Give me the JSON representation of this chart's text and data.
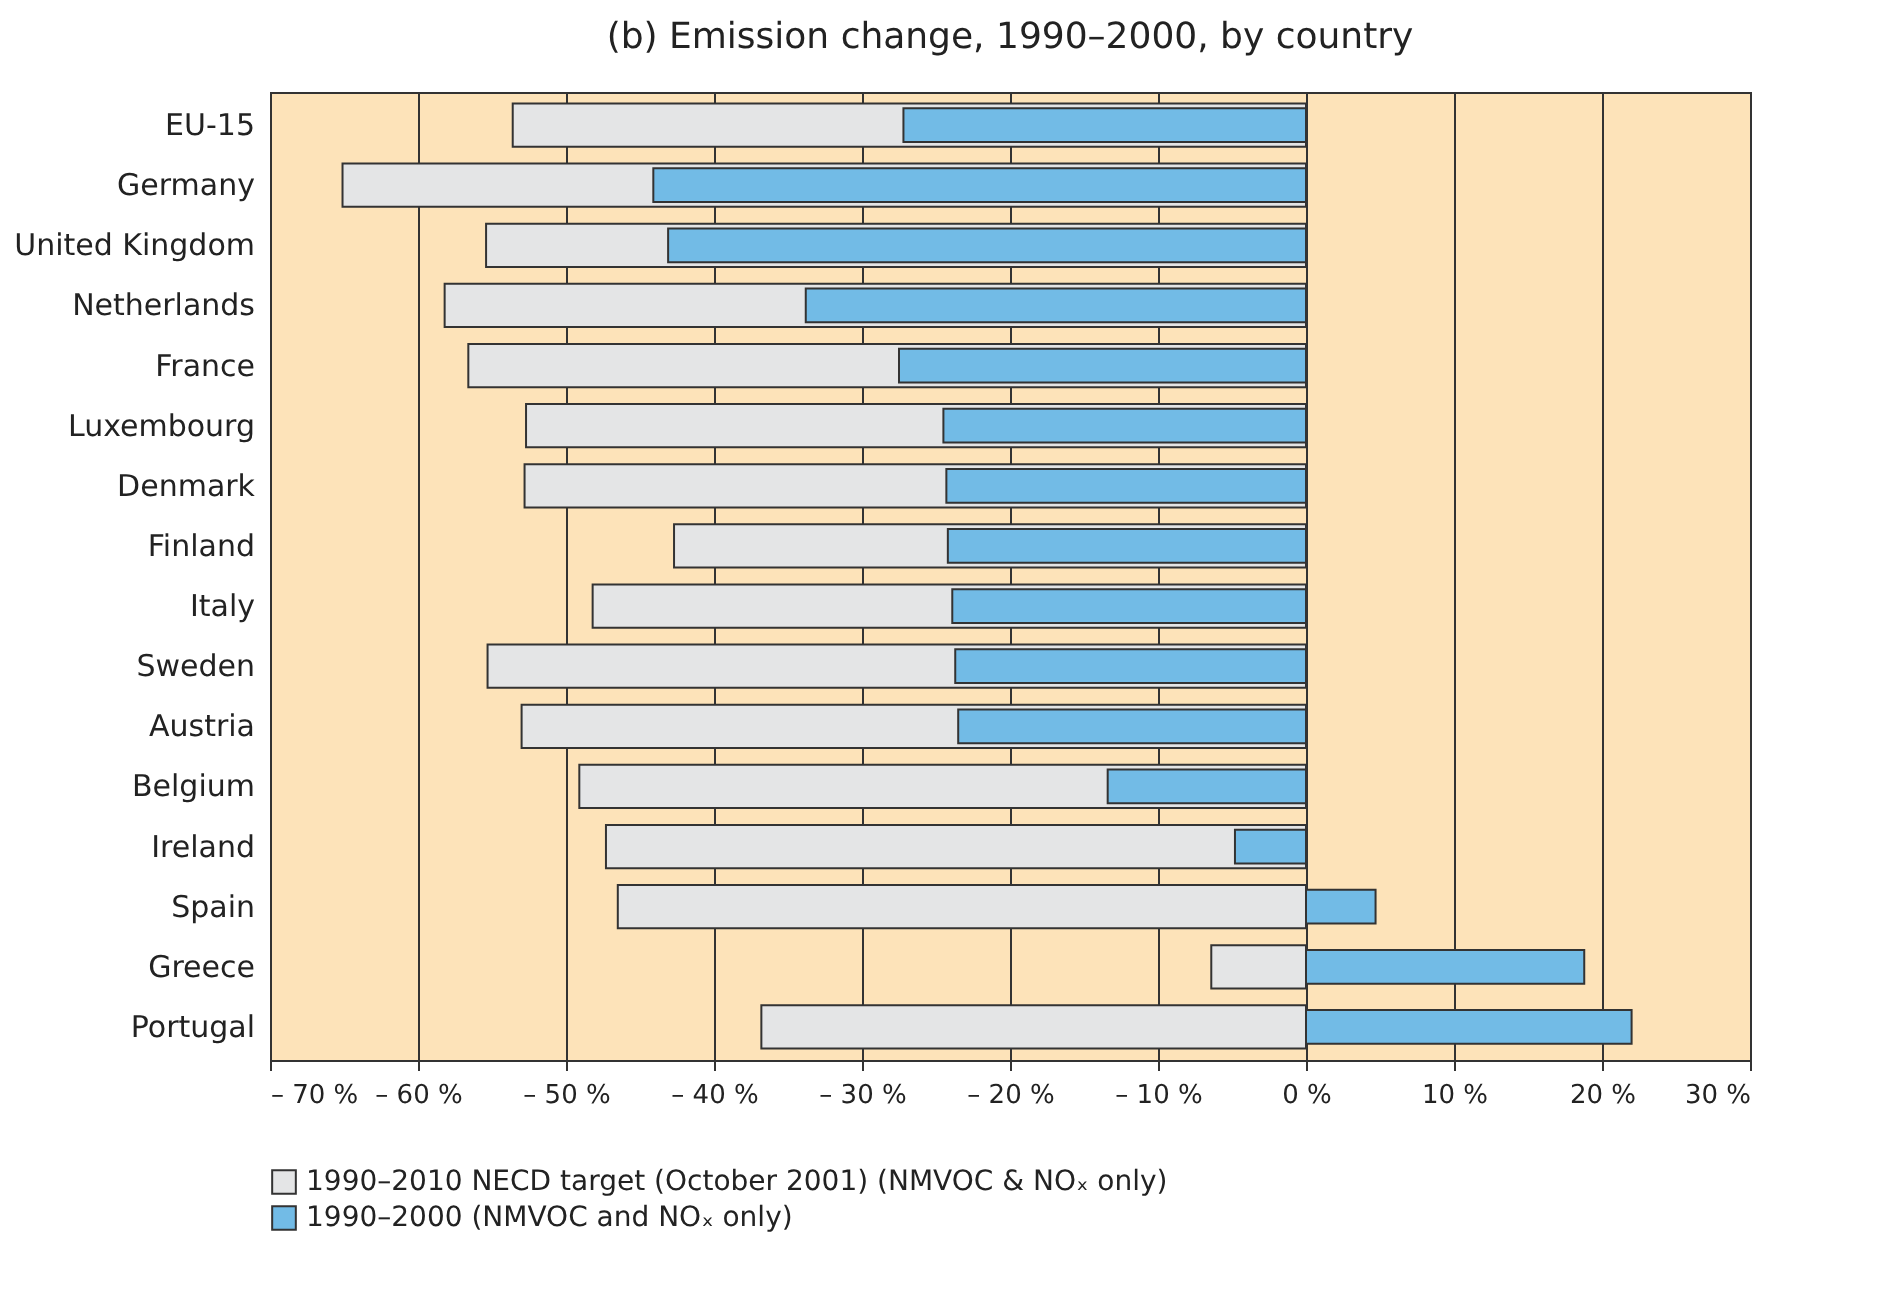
{
  "chart_data": {
    "type": "bar",
    "orientation": "horizontal",
    "title": "(b) Emission change, 1990–2000, by country",
    "categories": [
      "EU-15",
      "Germany",
      "United Kingdom",
      "Netherlands",
      "France",
      "Luxembourg",
      "Denmark",
      "Finland",
      "Italy",
      "Sweden",
      "Austria",
      "Belgium",
      "Ireland",
      "Spain",
      "Greece",
      "Portugal"
    ],
    "series": [
      {
        "name": "1990–2010 NECD target (October 2001) (NMVOC & NOₓ only)",
        "color": "#e4e5e6",
        "values": [
          -53.6,
          -65.1,
          -55.4,
          -58.2,
          -56.6,
          -52.7,
          -52.8,
          -42.7,
          -48.2,
          -55.3,
          -53.0,
          -49.1,
          -47.3,
          -46.5,
          -6.4,
          -36.8
        ]
      },
      {
        "name": "1990–2000 (NMVOC and NOₓ only)",
        "color": "#72bbe6",
        "values": [
          -27.2,
          -44.1,
          -43.1,
          -33.8,
          -27.5,
          -24.5,
          -24.3,
          -24.2,
          -23.9,
          -23.7,
          -23.5,
          -13.4,
          -4.8,
          4.7,
          18.8,
          22.0
        ]
      }
    ],
    "xlim": [
      -70,
      30
    ],
    "xticks": [
      {
        "value": -70,
        "label": "– 70 %"
      },
      {
        "value": -60,
        "label": "– 60 %"
      },
      {
        "value": -50,
        "label": "– 50 %"
      },
      {
        "value": -40,
        "label": "– 40 %"
      },
      {
        "value": -30,
        "label": "– 30 %"
      },
      {
        "value": -20,
        "label": "– 20 %"
      },
      {
        "value": -10,
        "label": "– 10 %"
      },
      {
        "value": 0,
        "label": "0 %"
      },
      {
        "value": 10,
        "label": "10 %"
      },
      {
        "value": 20,
        "label": "20 %"
      },
      {
        "value": 30,
        "label": "30 %"
      }
    ],
    "grid": "x",
    "legend": "bottom left"
  }
}
